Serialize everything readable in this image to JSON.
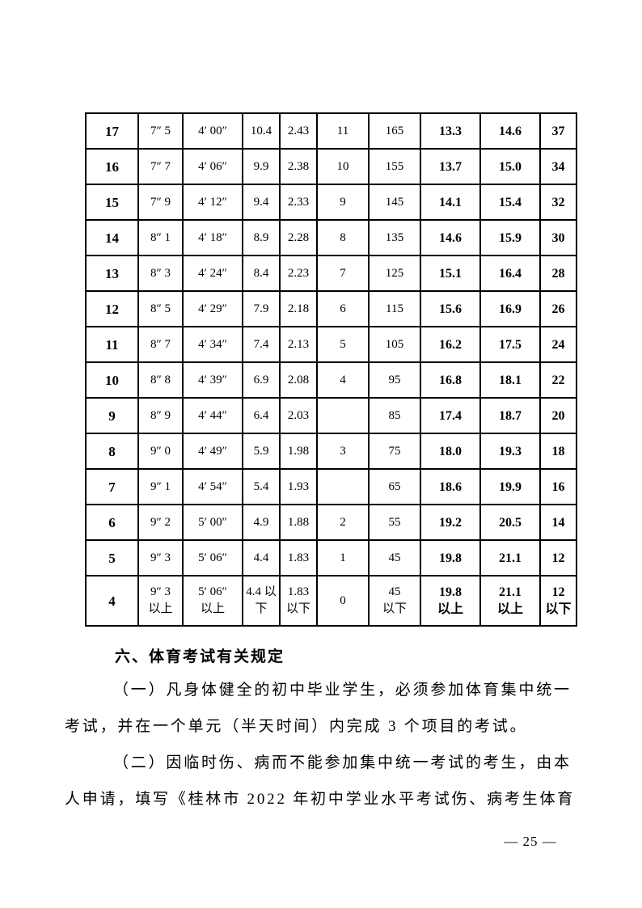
{
  "table": {
    "bold_columns": [
      0,
      7,
      8,
      9
    ],
    "rows": [
      {
        "cells": [
          "17",
          "7″ 5",
          "4′ 00″",
          "10.4",
          "2.43",
          "11",
          "165",
          "13.3",
          "14.6",
          "37"
        ]
      },
      {
        "cells": [
          "16",
          "7″ 7",
          "4′ 06″",
          "9.9",
          "2.38",
          "10",
          "155",
          "13.7",
          "15.0",
          "34"
        ]
      },
      {
        "cells": [
          "15",
          "7″ 9",
          "4′ 12″",
          "9.4",
          "2.33",
          "9",
          "145",
          "14.1",
          "15.4",
          "32"
        ]
      },
      {
        "cells": [
          "14",
          "8″ 1",
          "4′ 18″",
          "8.9",
          "2.28",
          "8",
          "135",
          "14.6",
          "15.9",
          "30"
        ]
      },
      {
        "cells": [
          "13",
          "8″ 3",
          "4′ 24″",
          "8.4",
          "2.23",
          "7",
          "125",
          "15.1",
          "16.4",
          "28"
        ]
      },
      {
        "cells": [
          "12",
          "8″ 5",
          "4′ 29″",
          "7.9",
          "2.18",
          "6",
          "115",
          "15.6",
          "16.9",
          "26"
        ]
      },
      {
        "cells": [
          "11",
          "8″ 7",
          "4′ 34″",
          "7.4",
          "2.13",
          "5",
          "105",
          "16.2",
          "17.5",
          "24"
        ]
      },
      {
        "cells": [
          "10",
          "8″ 8",
          "4′ 39″",
          "6.9",
          "2.08",
          "4",
          "95",
          "16.8",
          "18.1",
          "22"
        ]
      },
      {
        "cells": [
          "9",
          "8″ 9",
          "4′ 44″",
          "6.4",
          "2.03",
          "",
          "85",
          "17.4",
          "18.7",
          "20"
        ]
      },
      {
        "cells": [
          "8",
          "9″ 0",
          "4′ 49″",
          "5.9",
          "1.98",
          "3",
          "75",
          "18.0",
          "19.3",
          "18"
        ]
      },
      {
        "cells": [
          "7",
          "9″ 1",
          "4′ 54″",
          "5.4",
          "1.93",
          "",
          "65",
          "18.6",
          "19.9",
          "16"
        ]
      },
      {
        "cells": [
          "6",
          "9″ 2",
          "5′ 00″",
          "4.9",
          "1.88",
          "2",
          "55",
          "19.2",
          "20.5",
          "14"
        ]
      },
      {
        "cells": [
          "5",
          "9″ 3",
          "5′ 06″",
          "4.4",
          "1.83",
          "1",
          "45",
          "19.8",
          "21.1",
          "12"
        ]
      },
      {
        "cells": [
          "4",
          "9″ 3\n以上",
          "5′ 06″\n以上",
          "4.4 以\n下",
          "1.83\n以下",
          "0",
          "45\n以下",
          "19.8\n以上",
          "21.1\n以上",
          "12\n以下"
        ]
      }
    ]
  },
  "sections": {
    "heading": "六、体育考试有关规定",
    "para1": "（一）凡身体健全的初中毕业学生，必须参加体育集中统一\n考试，并在一个单元（半天时间）内完成 3 个项目的考试。",
    "para2": "（二）因临时伤、病而不能参加集中统一考试的考生，由本\n人申请，填写《桂林市 2022 年初中学业水平考试伤、病考生体育"
  },
  "page": {
    "number": "25",
    "number_display": "— 25 —"
  }
}
